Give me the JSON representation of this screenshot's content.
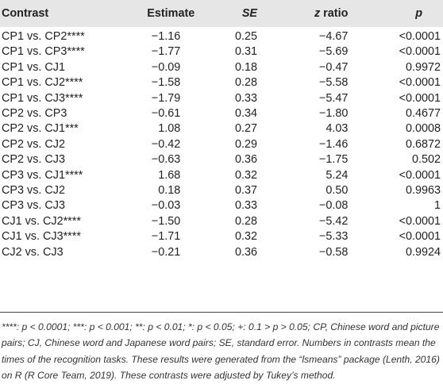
{
  "table": {
    "headers": {
      "contrast": "Contrast",
      "estimate": "Estimate",
      "se": "SE",
      "z_ratio": "z ratio",
      "p": "p"
    },
    "rows": [
      {
        "contrast": "CP1 vs. CP2****",
        "estimate": "−1.16",
        "se": "0.25",
        "z_ratio": "−4.67",
        "p": "<0.0001"
      },
      {
        "contrast": "CP1 vs. CP3****",
        "estimate": "−1.77",
        "se": "0.31",
        "z_ratio": "−5.69",
        "p": "<0.0001"
      },
      {
        "contrast": "CP1 vs. CJ1",
        "estimate": "−0.09",
        "se": "0.18",
        "z_ratio": "−0.47",
        "p": "0.9972"
      },
      {
        "contrast": "CP1 vs. CJ2****",
        "estimate": "−1.58",
        "se": "0.28",
        "z_ratio": "−5.58",
        "p": "<0.0001"
      },
      {
        "contrast": "CP1 vs. CJ3****",
        "estimate": "−1.79",
        "se": "0.33",
        "z_ratio": "−5.47",
        "p": "<0.0001"
      },
      {
        "contrast": "CP2 vs. CP3",
        "estimate": "−0.61",
        "se": "0.34",
        "z_ratio": "−1.80",
        "p": "0.4677"
      },
      {
        "contrast": "CP2 vs. CJ1***",
        "estimate": "1.08",
        "se": "0.27",
        "z_ratio": "4.03",
        "p": "0.0008"
      },
      {
        "contrast": "CP2 vs. CJ2",
        "estimate": "−0.42",
        "se": "0.29",
        "z_ratio": "−1.46",
        "p": "0.6872"
      },
      {
        "contrast": "CP2 vs. CJ3",
        "estimate": "−0.63",
        "se": "0.36",
        "z_ratio": "−1.75",
        "p": "0.502"
      },
      {
        "contrast": "CP3 vs. CJ1****",
        "estimate": "1.68",
        "se": "0.32",
        "z_ratio": "5.24",
        "p": "<0.0001"
      },
      {
        "contrast": "CP3 vs. CJ2",
        "estimate": "0.18",
        "se": "0.37",
        "z_ratio": "0.50",
        "p": "0.9963"
      },
      {
        "contrast": "CP3 vs. CJ3",
        "estimate": "−0.03",
        "se": "0.33",
        "z_ratio": "−0.08",
        "p": "1"
      },
      {
        "contrast": "CJ1 vs. CJ2****",
        "estimate": "−1.50",
        "se": "0.28",
        "z_ratio": "−5.42",
        "p": "<0.0001"
      },
      {
        "contrast": "CJ1 vs. CJ3****",
        "estimate": "−1.71",
        "se": "0.32",
        "z_ratio": "−5.33",
        "p": "<0.0001"
      },
      {
        "contrast": "CJ2 vs. CJ3",
        "estimate": "−0.21",
        "se": "0.36",
        "z_ratio": "−0.58",
        "p": "0.9924"
      }
    ]
  },
  "footnote": "****: p < 0.0001; ***: p < 0.001; **: p < 0.01; *: p < 0.05; +: 0.1 > p > 0.05; CP, Chinese word and picture pairs; CJ, Chinese word and Japanese word pairs; SE, standard error. Numbers in contrasts mean the times of the recognition tasks. These results were generated from the “lsmeans” package (Lenth, 2016) on R (R Core Team, 2019). These contrasts were adjusted by Tukey’s method.",
  "colors": {
    "header_bg": "#e6e6e6",
    "text": "#222222",
    "rule": "#444444"
  }
}
